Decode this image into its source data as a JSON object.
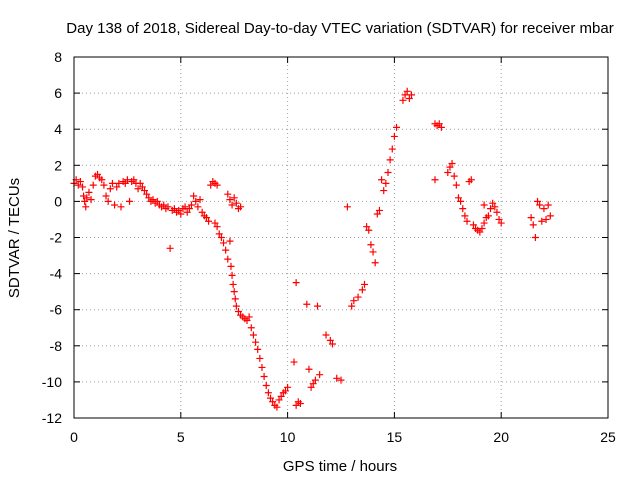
{
  "chart_data": {
    "type": "scatter",
    "title": "Day 138 of 2018, Sidereal Day-to-day VTEC variation (SDTVAR) for receiver mbar",
    "xlabel": "GPS time / hours",
    "ylabel": "SDTVAR / TECUs",
    "xlim": [
      0,
      25
    ],
    "ylim": [
      -12,
      8
    ],
    "xticks": [
      "0",
      "5",
      "10",
      "15",
      "20",
      "25"
    ],
    "yticks": [
      "-12",
      "-10",
      "-8",
      "-6",
      "-4",
      "-2",
      "0",
      "2",
      "4",
      "6",
      "8"
    ],
    "grid": true,
    "marker": "+",
    "color": "#ff0000",
    "points": [
      [
        0.0,
        1.0
      ],
      [
        0.1,
        1.2
      ],
      [
        0.2,
        0.9
      ],
      [
        0.3,
        1.1
      ],
      [
        0.4,
        0.8
      ],
      [
        0.45,
        0.3
      ],
      [
        0.5,
        0.0
      ],
      [
        0.55,
        -0.3
      ],
      [
        0.6,
        0.2
      ],
      [
        0.7,
        0.5
      ],
      [
        0.8,
        0.1
      ],
      [
        0.9,
        0.9
      ],
      [
        1.0,
        1.4
      ],
      [
        1.1,
        1.5
      ],
      [
        1.2,
        1.3
      ],
      [
        1.3,
        1.2
      ],
      [
        1.4,
        0.9
      ],
      [
        1.5,
        0.3
      ],
      [
        1.6,
        0.0
      ],
      [
        1.7,
        0.7
      ],
      [
        1.8,
        1.0
      ],
      [
        1.9,
        -0.2
      ],
      [
        2.0,
        0.8
      ],
      [
        2.1,
        1.0
      ],
      [
        2.2,
        -0.3
      ],
      [
        2.3,
        1.1
      ],
      [
        2.4,
        1.0
      ],
      [
        2.5,
        1.2
      ],
      [
        2.6,
        0.0
      ],
      [
        2.7,
        1.1
      ],
      [
        2.8,
        1.2
      ],
      [
        2.9,
        1.0
      ],
      [
        3.0,
        0.7
      ],
      [
        3.1,
        1.0
      ],
      [
        3.2,
        0.8
      ],
      [
        3.3,
        0.6
      ],
      [
        3.4,
        0.4
      ],
      [
        3.5,
        0.2
      ],
      [
        3.6,
        0.0
      ],
      [
        3.7,
        0.1
      ],
      [
        3.8,
        -0.1
      ],
      [
        3.9,
        0.0
      ],
      [
        4.0,
        -0.2
      ],
      [
        4.1,
        -0.3
      ],
      [
        4.2,
        -0.2
      ],
      [
        4.3,
        -0.4
      ],
      [
        4.4,
        -0.3
      ],
      [
        4.5,
        -2.6
      ],
      [
        4.6,
        -0.5
      ],
      [
        4.7,
        -0.4
      ],
      [
        4.8,
        -0.6
      ],
      [
        4.9,
        -0.5
      ],
      [
        5.0,
        -0.7
      ],
      [
        5.1,
        -0.4
      ],
      [
        5.2,
        -0.3
      ],
      [
        5.3,
        -0.6
      ],
      [
        5.4,
        -0.4
      ],
      [
        5.5,
        -0.2
      ],
      [
        5.6,
        0.3
      ],
      [
        5.7,
        0.0
      ],
      [
        5.8,
        -0.3
      ],
      [
        5.9,
        0.1
      ],
      [
        6.0,
        -0.6
      ],
      [
        6.1,
        -0.8
      ],
      [
        6.2,
        -0.9
      ],
      [
        6.3,
        -1.1
      ],
      [
        6.4,
        0.9
      ],
      [
        6.5,
        1.1
      ],
      [
        6.6,
        1.0
      ],
      [
        6.7,
        0.9
      ],
      [
        6.6,
        -1.2
      ],
      [
        6.7,
        -1.4
      ],
      [
        6.8,
        -1.8
      ],
      [
        6.9,
        -2.0
      ],
      [
        7.0,
        -2.3
      ],
      [
        7.1,
        -2.7
      ],
      [
        7.2,
        -3.2
      ],
      [
        7.3,
        -2.2
      ],
      [
        7.35,
        -3.6
      ],
      [
        7.4,
        -4.1
      ],
      [
        7.45,
        -4.6
      ],
      [
        7.5,
        -5.0
      ],
      [
        7.55,
        -5.4
      ],
      [
        7.6,
        -5.8
      ],
      [
        7.7,
        -6.1
      ],
      [
        7.8,
        -6.3
      ],
      [
        7.9,
        -6.4
      ],
      [
        8.0,
        -6.5
      ],
      [
        8.1,
        -6.6
      ],
      [
        8.2,
        -6.4
      ],
      [
        7.2,
        0.4
      ],
      [
        7.3,
        0.1
      ],
      [
        7.4,
        -0.2
      ],
      [
        7.5,
        0.2
      ],
      [
        7.6,
        -0.1
      ],
      [
        7.7,
        -0.4
      ],
      [
        7.8,
        -0.3
      ],
      [
        8.3,
        -7.0
      ],
      [
        8.4,
        -7.4
      ],
      [
        8.5,
        -7.8
      ],
      [
        8.6,
        -8.2
      ],
      [
        8.7,
        -8.7
      ],
      [
        8.8,
        -9.2
      ],
      [
        8.9,
        -9.7
      ],
      [
        9.0,
        -10.2
      ],
      [
        9.1,
        -10.6
      ],
      [
        9.2,
        -10.9
      ],
      [
        9.3,
        -11.1
      ],
      [
        9.4,
        -11.3
      ],
      [
        9.5,
        -11.4
      ],
      [
        9.6,
        -11.0
      ],
      [
        9.7,
        -10.8
      ],
      [
        9.8,
        -10.6
      ],
      [
        9.9,
        -10.5
      ],
      [
        10.0,
        -10.3
      ],
      [
        10.4,
        -4.5
      ],
      [
        10.3,
        -8.9
      ],
      [
        10.4,
        -11.3
      ],
      [
        10.5,
        -11.1
      ],
      [
        10.6,
        -11.2
      ],
      [
        10.9,
        -5.7
      ],
      [
        11.0,
        -9.3
      ],
      [
        11.1,
        -10.3
      ],
      [
        11.2,
        -10.1
      ],
      [
        11.3,
        -9.9
      ],
      [
        11.4,
        -5.8
      ],
      [
        11.5,
        -9.6
      ],
      [
        11.8,
        -7.4
      ],
      [
        12.0,
        -7.7
      ],
      [
        12.1,
        -7.9
      ],
      [
        12.3,
        -9.8
      ],
      [
        12.5,
        -9.9
      ],
      [
        12.8,
        -0.3
      ],
      [
        13.0,
        -5.8
      ],
      [
        13.1,
        -5.5
      ],
      [
        13.3,
        -5.3
      ],
      [
        13.5,
        -4.9
      ],
      [
        13.6,
        -4.6
      ],
      [
        13.7,
        -1.4
      ],
      [
        13.8,
        -1.6
      ],
      [
        13.9,
        -2.4
      ],
      [
        14.0,
        -2.8
      ],
      [
        14.1,
        -3.4
      ],
      [
        14.2,
        -0.7
      ],
      [
        14.3,
        -0.5
      ],
      [
        14.4,
        1.2
      ],
      [
        14.5,
        0.6
      ],
      [
        14.6,
        1.0
      ],
      [
        14.7,
        1.6
      ],
      [
        14.8,
        2.3
      ],
      [
        14.9,
        2.9
      ],
      [
        15.0,
        3.6
      ],
      [
        15.1,
        4.1
      ],
      [
        15.4,
        5.6
      ],
      [
        15.5,
        5.9
      ],
      [
        15.6,
        6.1
      ],
      [
        15.7,
        5.7
      ],
      [
        15.8,
        5.9
      ],
      [
        16.9,
        4.3
      ],
      [
        17.0,
        4.2
      ],
      [
        17.1,
        4.3
      ],
      [
        17.2,
        4.1
      ],
      [
        16.9,
        1.2
      ],
      [
        17.5,
        1.6
      ],
      [
        17.6,
        1.9
      ],
      [
        17.7,
        2.1
      ],
      [
        17.8,
        1.4
      ],
      [
        17.9,
        0.9
      ],
      [
        18.0,
        0.2
      ],
      [
        18.1,
        0.0
      ],
      [
        18.2,
        -0.4
      ],
      [
        18.3,
        -0.8
      ],
      [
        18.4,
        -1.1
      ],
      [
        18.5,
        1.1
      ],
      [
        18.6,
        1.2
      ],
      [
        18.7,
        -1.3
      ],
      [
        18.8,
        -1.5
      ],
      [
        18.9,
        -1.6
      ],
      [
        19.0,
        -1.7
      ],
      [
        19.1,
        -1.5
      ],
      [
        19.2,
        -1.2
      ],
      [
        19.3,
        -0.9
      ],
      [
        19.4,
        -0.8
      ],
      [
        19.5,
        -0.4
      ],
      [
        19.6,
        -0.1
      ],
      [
        19.7,
        -0.3
      ],
      [
        19.8,
        -0.6
      ],
      [
        19.9,
        -1.0
      ],
      [
        20.0,
        -1.2
      ],
      [
        19.2,
        -0.2
      ],
      [
        21.4,
        -0.9
      ],
      [
        21.5,
        -1.3
      ],
      [
        21.6,
        -2.0
      ],
      [
        21.7,
        0.0
      ],
      [
        21.8,
        -0.2
      ],
      [
        21.9,
        -1.1
      ],
      [
        22.0,
        -0.4
      ],
      [
        22.1,
        -1.0
      ],
      [
        22.2,
        -0.2
      ],
      [
        22.3,
        -0.8
      ]
    ]
  }
}
